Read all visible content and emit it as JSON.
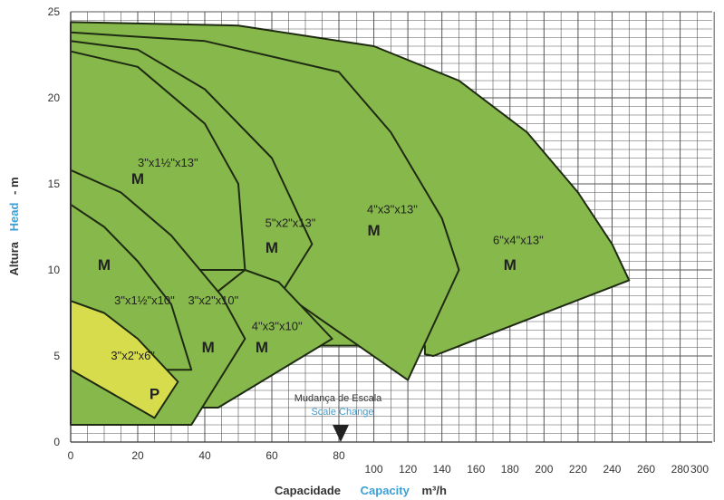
{
  "chart_data": {
    "type": "area",
    "xlabel_pt": "Capacidade",
    "xlabel_en": "Capacity",
    "xlabel_unit": "m³/h",
    "ylabel_pt": "Altura",
    "ylabel_en": "Head",
    "ylabel_unit": "- m",
    "ylim": [
      0,
      25
    ],
    "grid": true,
    "y_ticks": [
      "0",
      "5",
      "10",
      "15",
      "20",
      "25"
    ],
    "x_ticks_low": [
      "0",
      "20",
      "40",
      "60",
      "80"
    ],
    "x_ticks_high": [
      "100",
      "120",
      "140",
      "160",
      "180",
      "200",
      "220",
      "240",
      "260",
      "280",
      "300"
    ],
    "scale_change": {
      "x": 80,
      "label_pt": "Mudança de Escala",
      "label_en": "Scale Change"
    },
    "colors": {
      "fill_m": "#86b84b",
      "fill_p": "#d7dc4c",
      "grid": "#555555",
      "outline": "#1e2a12",
      "accent_en": "#3aa0d8"
    },
    "series": [
      {
        "name": "6\"x4\"x13\"",
        "letter": "M",
        "fill": "m",
        "label_pos": [
          170,
          11.5
        ],
        "letter_pos": [
          180,
          10
        ],
        "points": [
          [
            0,
            24.4
          ],
          [
            50,
            24.2
          ],
          [
            100,
            23
          ],
          [
            150,
            21
          ],
          [
            190,
            18
          ],
          [
            220,
            14.5
          ],
          [
            240,
            11.5
          ],
          [
            250,
            9.4
          ],
          [
            135,
            5
          ],
          [
            130,
            5.1
          ],
          [
            130,
            5.6
          ],
          [
            0,
            5.6
          ]
        ]
      },
      {
        "name": "4\"x3\"x13\"",
        "letter": "M",
        "fill": "m",
        "label_pos": [
          96,
          13.3
        ],
        "letter_pos": [
          100,
          12
        ],
        "points": [
          [
            0,
            23.8
          ],
          [
            40,
            23.3
          ],
          [
            80,
            21.5
          ],
          [
            110,
            18
          ],
          [
            140,
            13
          ],
          [
            150,
            10
          ],
          [
            120,
            3.6
          ],
          [
            63,
            8.7
          ],
          [
            0,
            8.7
          ]
        ]
      },
      {
        "name": "5\"x2\"x13\"",
        "letter": "M",
        "fill": "m",
        "label_pos": [
          58,
          12.5
        ],
        "letter_pos": [
          60,
          11
        ],
        "points": [
          [
            0,
            23.3
          ],
          [
            20,
            22.8
          ],
          [
            40,
            20.5
          ],
          [
            60,
            16.5
          ],
          [
            72,
            11.5
          ],
          [
            63,
            8.7
          ],
          [
            0,
            8.7
          ]
        ]
      },
      {
        "name": "3\"x1½\"x13\"",
        "letter": "M",
        "fill": "m",
        "label_pos": [
          20,
          16
        ],
        "letter_pos": [
          20,
          15
        ],
        "points": [
          [
            0,
            22.7
          ],
          [
            20,
            21.8
          ],
          [
            40,
            18.5
          ],
          [
            50,
            15
          ],
          [
            52,
            10
          ],
          [
            0,
            10
          ]
        ]
      },
      {
        "name": "4\"x3\"x10\"",
        "letter": "M",
        "fill": "m",
        "label_pos": [
          54,
          6.5
        ],
        "letter_pos": [
          57,
          5.2
        ],
        "points": [
          [
            52,
            10
          ],
          [
            62,
            9.3
          ],
          [
            78,
            6
          ],
          [
            44,
            2
          ],
          [
            0,
            2
          ]
        ]
      },
      {
        "name": "3\"x2\"x10\"",
        "letter": "M",
        "fill": "m",
        "label_pos": [
          35,
          8
        ],
        "letter_pos": [
          41,
          5.2
        ],
        "points": [
          [
            0,
            15.8
          ],
          [
            15,
            14.5
          ],
          [
            30,
            12
          ],
          [
            45,
            8.5
          ],
          [
            52,
            6
          ],
          [
            36,
            1
          ],
          [
            0,
            1
          ]
        ]
      },
      {
        "name": "3\"x1½\"x10\"",
        "letter": "M",
        "fill": "m",
        "label_pos": [
          13,
          8
        ],
        "letter_pos": [
          10,
          10
        ],
        "points": [
          [
            0,
            13.8
          ],
          [
            10,
            12.5
          ],
          [
            20,
            10.5
          ],
          [
            30,
            8
          ],
          [
            36,
            4.2
          ],
          [
            0,
            4.2
          ]
        ]
      },
      {
        "name": "3\"x2\"x6\"",
        "letter": "P",
        "fill": "p",
        "label_pos": [
          12,
          4.8
        ],
        "letter_pos": [
          25,
          2.5
        ],
        "points": [
          [
            0,
            8.2
          ],
          [
            10,
            7.5
          ],
          [
            20,
            6
          ],
          [
            32,
            3.5
          ],
          [
            25,
            1.4
          ],
          [
            0,
            4.2
          ]
        ]
      }
    ]
  }
}
